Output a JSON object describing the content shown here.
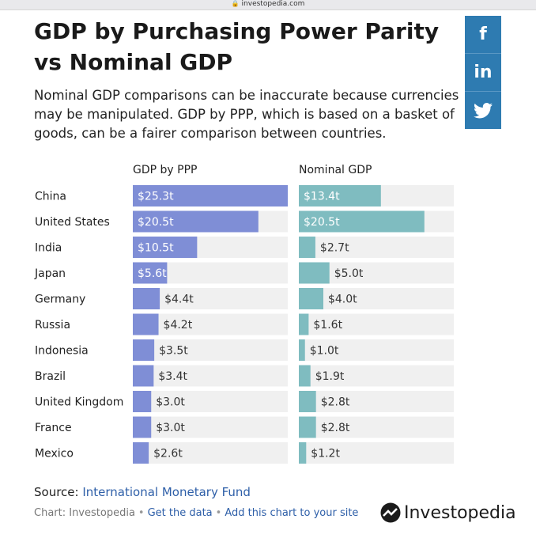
{
  "browser": {
    "url": "investopedia.com"
  },
  "title": "GDP by Purchasing Power Parity vs Nominal GDP",
  "subtitle": "Nominal GDP comparisons can be inaccurate because currencies may be manipulated. GDP by PPP, which is based on a basket of goods, can be a fairer comparison between countries.",
  "share": {
    "facebook_label": "f",
    "linkedin_label": "in",
    "twitter_icon": "twitter-bird-icon",
    "color": "#2e7bb1"
  },
  "colors": {
    "ppp_bar": "#7f8ed6",
    "nominal_bar": "#7fbcc0",
    "track": "#f0f0f0"
  },
  "chart_data": {
    "type": "bar",
    "orientation": "horizontal",
    "categories": [
      "China",
      "United States",
      "India",
      "Japan",
      "Germany",
      "Russia",
      "Indonesia",
      "Brazil",
      "United Kingdom",
      "France",
      "Mexico"
    ],
    "series": [
      {
        "name": "GDP by PPP",
        "values": [
          25.3,
          20.5,
          10.5,
          5.6,
          4.4,
          4.2,
          3.5,
          3.4,
          3.0,
          3.0,
          2.6
        ],
        "labels": [
          "$25.3t",
          "$20.5t",
          "$10.5t",
          "$5.6t",
          "$4.4t",
          "$4.2t",
          "$3.5t",
          "$3.4t",
          "$3.0t",
          "$3.0t",
          "$2.6t"
        ],
        "max": 25.3
      },
      {
        "name": "Nominal GDP",
        "values": [
          13.4,
          20.5,
          2.7,
          5.0,
          4.0,
          1.6,
          1.0,
          1.9,
          2.8,
          2.8,
          1.2
        ],
        "labels": [
          "$13.4t",
          "$20.5t",
          "$2.7t",
          "$5.0t",
          "$4.0t",
          "$1.6t",
          "$1.0t",
          "$1.9t",
          "$2.8t",
          "$2.8t",
          "$1.2t"
        ],
        "max": 25.3
      }
    ]
  },
  "source": {
    "prefix": "Source:",
    "link": "International Monetary Fund"
  },
  "footer": {
    "credit": "Chart: Investopedia",
    "sep": "•",
    "get_data": "Get the data",
    "add_chart": "Add this chart to your site"
  },
  "logo": {
    "text": "Investopedia"
  }
}
